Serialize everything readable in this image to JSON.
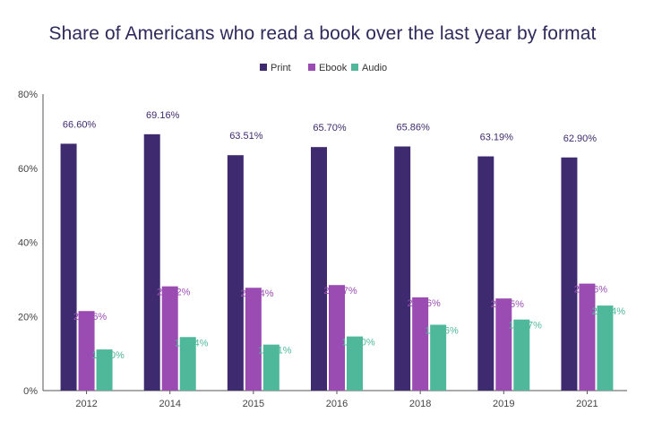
{
  "chart_data": {
    "type": "bar",
    "title": "Share of Americans who read a book over the last year by format",
    "categories": [
      "2012",
      "2014",
      "2015",
      "2016",
      "2018",
      "2019",
      "2021"
    ],
    "series": [
      {
        "name": "Print",
        "color": "#3e2a6e",
        "labelColor": "#3e2a6e",
        "values": [
          66.6,
          69.16,
          63.51,
          65.7,
          65.86,
          63.19,
          62.9
        ],
        "labels": [
          "66.60%",
          "69.16%",
          "63.51%",
          "65.70%",
          "65.86%",
          "63.19%",
          "62.90%"
        ]
      },
      {
        "name": "Ebook",
        "color": "#9b4cb3",
        "labelColor": "#9b4cb3",
        "values": [
          21.46,
          28.12,
          27.74,
          28.47,
          25.16,
          24.85,
          28.86
        ],
        "labels": [
          "21.46%",
          "28.12%",
          "27.74%",
          "28.47%",
          "25.16%",
          "24.85%",
          "28.86%"
        ]
      },
      {
        "name": "Audio",
        "color": "#4fb89a",
        "labelColor": "#4fb89a",
        "values": [
          11.1,
          14.44,
          12.41,
          14.6,
          17.76,
          19.17,
          22.94
        ],
        "labels": [
          "11.10%",
          "14.44%",
          "12.41%",
          "14.60%",
          "17.76%",
          "19.17%",
          "22.94%"
        ]
      }
    ],
    "yticks": [
      "0%",
      "20%",
      "40%",
      "60%",
      "80%"
    ],
    "ylim": [
      0,
      80
    ],
    "legend_position": "top-center",
    "grid": false
  }
}
